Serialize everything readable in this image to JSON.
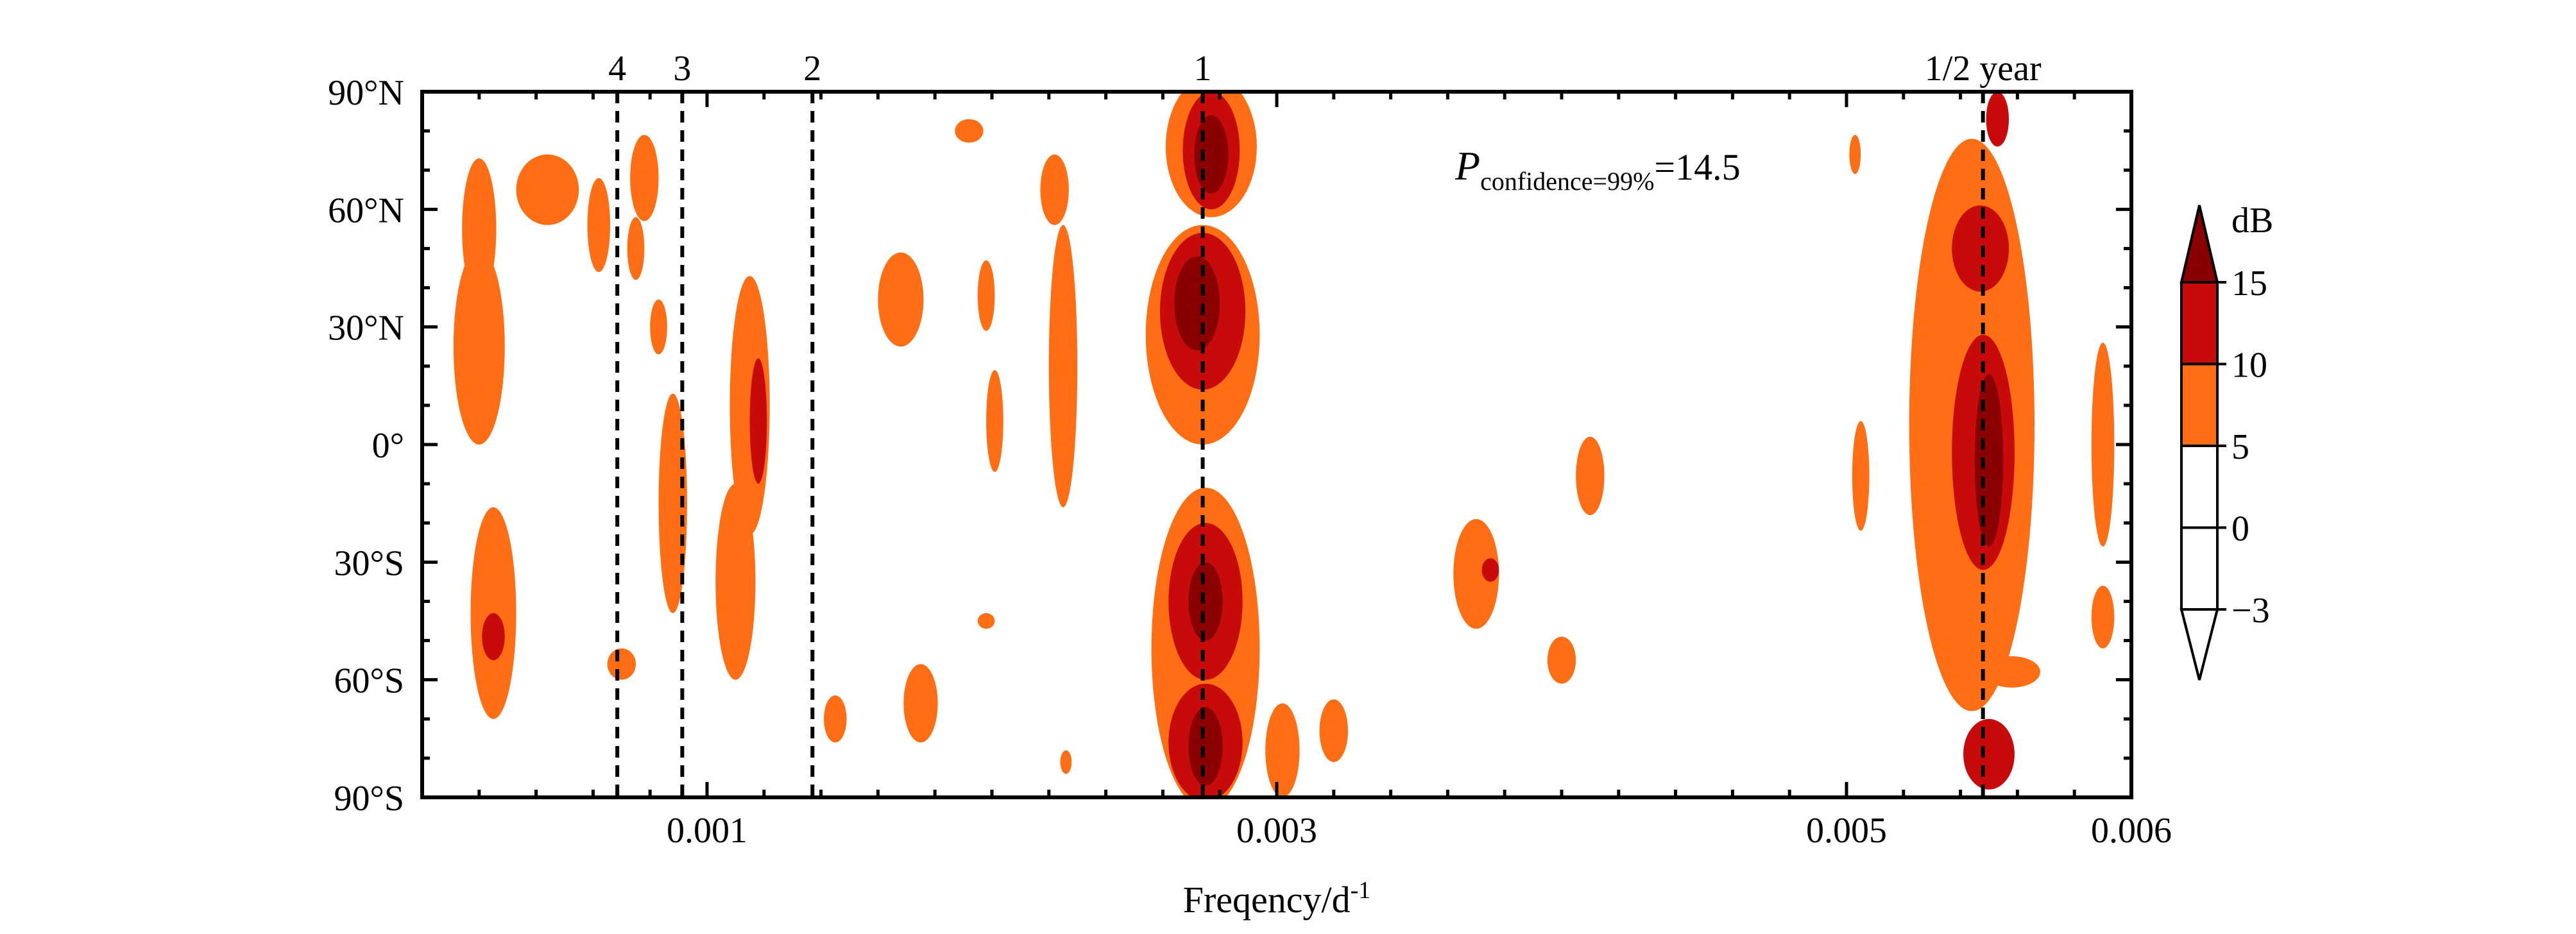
{
  "chart_data": {
    "type": "heatmap",
    "title": "",
    "xlabel": "Freqency/d",
    "xlabel_sup": "-1",
    "ylabel": "",
    "xlim": [
      0.0,
      0.006
    ],
    "ylim": [
      -90,
      90
    ],
    "x_ticks": [
      {
        "value": 0.001,
        "label": "0.001"
      },
      {
        "value": 0.003,
        "label": "0.003"
      },
      {
        "value": 0.005,
        "label": "0.005"
      },
      {
        "value": 0.006,
        "label": "0.006"
      }
    ],
    "y_ticks": [
      {
        "value": 90,
        "label": "90°N"
      },
      {
        "value": 60,
        "label": "60°N"
      },
      {
        "value": 30,
        "label": "30°N"
      },
      {
        "value": 0,
        "label": "0°"
      },
      {
        "value": -30,
        "label": "30°S"
      },
      {
        "value": -60,
        "label": "60°S"
      },
      {
        "value": -90,
        "label": "90°S"
      }
    ],
    "period_lines": [
      {
        "x": 0.000685,
        "label": "4"
      },
      {
        "x": 0.000913,
        "label": "3"
      },
      {
        "x": 0.00137,
        "label": "2"
      },
      {
        "x": 0.00274,
        "label": "1"
      },
      {
        "x": 0.005479,
        "label": "1/2 year"
      }
    ],
    "annotation": {
      "main": "P",
      "subscript": "confidence=99%",
      "suffix": "=14.5"
    },
    "colorbar": {
      "unit": "dB",
      "extend": "both",
      "levels": [
        -3,
        0,
        5,
        10,
        15
      ],
      "level_labels": [
        "−3",
        "0",
        "5",
        "10",
        "15"
      ],
      "bins": [
        {
          "from": -3,
          "to": 0,
          "color": "#ffffff"
        },
        {
          "from": 0,
          "to": 5,
          "color": "#ffffff"
        },
        {
          "from": 5,
          "to": 10,
          "color": "#ff6d14"
        },
        {
          "from": 10,
          "to": 15,
          "color": "#c70a0a"
        }
      ],
      "upper_extend_color": "#8a0000",
      "lower_extend_color": "#ffffff"
    },
    "levels_colors": {
      "5-10": "#ff6d14",
      "10-15": "#c70a0a",
      ">15": "#8a0000"
    },
    "regions": [
      {
        "level": 5,
        "x": 0.00078,
        "y": 68,
        "rx": 5e-05,
        "ry": 11
      },
      {
        "level": 5,
        "x": 0.00044,
        "y": 65,
        "rx": 0.00011,
        "ry": 9
      },
      {
        "level": 5,
        "x": 0.00062,
        "y": 56,
        "rx": 4e-05,
        "ry": 12
      },
      {
        "level": 5,
        "x": 0.0002,
        "y": 55,
        "rx": 6e-05,
        "ry": 18
      },
      {
        "level": 5,
        "x": 0.0002,
        "y": 25,
        "rx": 9e-05,
        "ry": 25
      },
      {
        "level": 5,
        "x": 0.00083,
        "y": 30,
        "rx": 3e-05,
        "ry": 7
      },
      {
        "level": 5,
        "x": 0.00075,
        "y": 50,
        "rx": 3e-05,
        "ry": 8
      },
      {
        "level": 5,
        "x": 0.00088,
        "y": -15,
        "rx": 5e-05,
        "ry": 28
      },
      {
        "level": 5,
        "x": 0.00115,
        "y": 10,
        "rx": 7e-05,
        "ry": 33
      },
      {
        "level": 5,
        "x": 0.0011,
        "y": -35,
        "rx": 7e-05,
        "ry": 25
      },
      {
        "level": 5,
        "x": 0.00025,
        "y": -43,
        "rx": 8e-05,
        "ry": 27
      },
      {
        "level": 5,
        "x": 0.0007,
        "y": -56,
        "rx": 5e-05,
        "ry": 4
      },
      {
        "level": 5,
        "x": 0.00145,
        "y": -70,
        "rx": 4e-05,
        "ry": 6
      },
      {
        "level": 5,
        "x": 0.00168,
        "y": 37,
        "rx": 8e-05,
        "ry": 12
      },
      {
        "level": 5,
        "x": 0.00175,
        "y": -66,
        "rx": 6e-05,
        "ry": 10
      },
      {
        "level": 5,
        "x": 0.00192,
        "y": 80,
        "rx": 5e-05,
        "ry": 3
      },
      {
        "level": 5,
        "x": 0.00198,
        "y": 38,
        "rx": 3e-05,
        "ry": 9
      },
      {
        "level": 5,
        "x": 0.00201,
        "y": 6,
        "rx": 3e-05,
        "ry": 13
      },
      {
        "level": 5,
        "x": 0.00198,
        "y": -45,
        "rx": 3e-05,
        "ry": 2
      },
      {
        "level": 5,
        "x": 0.00222,
        "y": 65,
        "rx": 5e-05,
        "ry": 9
      },
      {
        "level": 5,
        "x": 0.00225,
        "y": 20,
        "rx": 5e-05,
        "ry": 36
      },
      {
        "level": 5,
        "x": 0.00226,
        "y": -81,
        "rx": 2e-05,
        "ry": 3
      },
      {
        "level": 5,
        "x": 0.00277,
        "y": 76,
        "rx": 0.00016,
        "ry": 18
      },
      {
        "level": 5,
        "x": 0.00274,
        "y": 28,
        "rx": 0.0002,
        "ry": 28
      },
      {
        "level": 5,
        "x": 0.00275,
        "y": -52,
        "rx": 0.00019,
        "ry": 41
      },
      {
        "level": 5,
        "x": 0.00302,
        "y": -78,
        "rx": 6e-05,
        "ry": 12
      },
      {
        "level": 5,
        "x": 0.0032,
        "y": -73,
        "rx": 5e-05,
        "ry": 8
      },
      {
        "level": 5,
        "x": 0.0037,
        "y": -33,
        "rx": 8e-05,
        "ry": 14
      },
      {
        "level": 5,
        "x": 0.004,
        "y": -55,
        "rx": 5e-05,
        "ry": 6
      },
      {
        "level": 5,
        "x": 0.0041,
        "y": -8,
        "rx": 5e-05,
        "ry": 10
      },
      {
        "level": 5,
        "x": 0.00503,
        "y": 74,
        "rx": 2e-05,
        "ry": 5
      },
      {
        "level": 5,
        "x": 0.00505,
        "y": -8,
        "rx": 3e-05,
        "ry": 14
      },
      {
        "level": 5,
        "x": 0.00544,
        "y": 5,
        "rx": 0.00022,
        "ry": 73
      },
      {
        "level": 5,
        "x": 0.00558,
        "y": -58,
        "rx": 0.0001,
        "ry": 4
      },
      {
        "level": 5,
        "x": 0.0059,
        "y": 0,
        "rx": 4e-05,
        "ry": 26
      },
      {
        "level": 5,
        "x": 0.0059,
        "y": -44,
        "rx": 4e-05,
        "ry": 8
      },
      {
        "level": 10,
        "x": 0.00277,
        "y": 75,
        "rx": 0.0001,
        "ry": 15
      },
      {
        "level": 10,
        "x": 0.00274,
        "y": 34,
        "rx": 0.00015,
        "ry": 20
      },
      {
        "level": 10,
        "x": 0.00275,
        "y": -40,
        "rx": 0.00013,
        "ry": 20
      },
      {
        "level": 10,
        "x": 0.00275,
        "y": -76,
        "rx": 0.00013,
        "ry": 15
      },
      {
        "level": 10,
        "x": 0.00547,
        "y": 50,
        "rx": 0.0001,
        "ry": 11
      },
      {
        "level": 10,
        "x": 0.00548,
        "y": -2,
        "rx": 0.00011,
        "ry": 30
      },
      {
        "level": 10,
        "x": 0.0055,
        "y": -79,
        "rx": 9e-05,
        "ry": 9
      },
      {
        "level": 10,
        "x": 0.00553,
        "y": 83,
        "rx": 4e-05,
        "ry": 7
      },
      {
        "level": 10,
        "x": 0.00118,
        "y": 6,
        "rx": 3e-05,
        "ry": 16
      },
      {
        "level": 10,
        "x": 0.00025,
        "y": -49,
        "rx": 4e-05,
        "ry": 6
      },
      {
        "level": 10,
        "x": 0.00375,
        "y": -32,
        "rx": 3e-05,
        "ry": 3
      },
      {
        "level": 15,
        "x": 0.00277,
        "y": 74,
        "rx": 6e-05,
        "ry": 10
      },
      {
        "level": 15,
        "x": 0.00272,
        "y": 36,
        "rx": 8e-05,
        "ry": 12
      },
      {
        "level": 15,
        "x": 0.00275,
        "y": -40,
        "rx": 6e-05,
        "ry": 10
      },
      {
        "level": 15,
        "x": 0.00275,
        "y": -77,
        "rx": 6e-05,
        "ry": 10
      },
      {
        "level": 15,
        "x": 0.0055,
        "y": -4,
        "rx": 5e-05,
        "ry": 22
      }
    ]
  }
}
